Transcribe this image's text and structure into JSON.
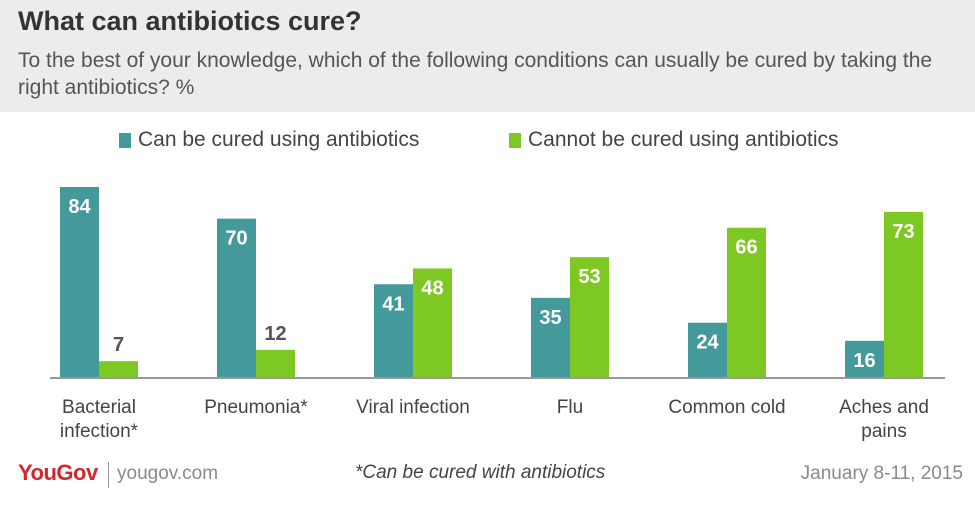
{
  "header": {
    "title": "What can antibiotics cure?",
    "subtitle": "To the best of your knowledge, which of the following conditions can usually be cured by taking the right antibiotics? %"
  },
  "footer": {
    "brand": "YouGov",
    "site": "yougov.com",
    "note": "*Can be cured with antibiotics",
    "date": "January 8-11, 2015"
  },
  "chart_data": {
    "type": "bar",
    "categories": [
      [
        "Bacterial",
        "infection*"
      ],
      [
        "Pneumonia*"
      ],
      [
        "Viral infection"
      ],
      [
        "Flu"
      ],
      [
        "Common cold"
      ],
      [
        "Aches and",
        "pains"
      ]
    ],
    "series": [
      {
        "name": "Can be cured using antibiotics",
        "color": "#44999b",
        "values": [
          84,
          70,
          41,
          35,
          24,
          16
        ]
      },
      {
        "name": "Cannot be cured using antibiotics",
        "color": "#7dc822",
        "values": [
          7,
          12,
          48,
          53,
          66,
          73
        ]
      }
    ],
    "ylim": [
      0,
      84
    ],
    "grid": false,
    "legend": "top-center"
  }
}
